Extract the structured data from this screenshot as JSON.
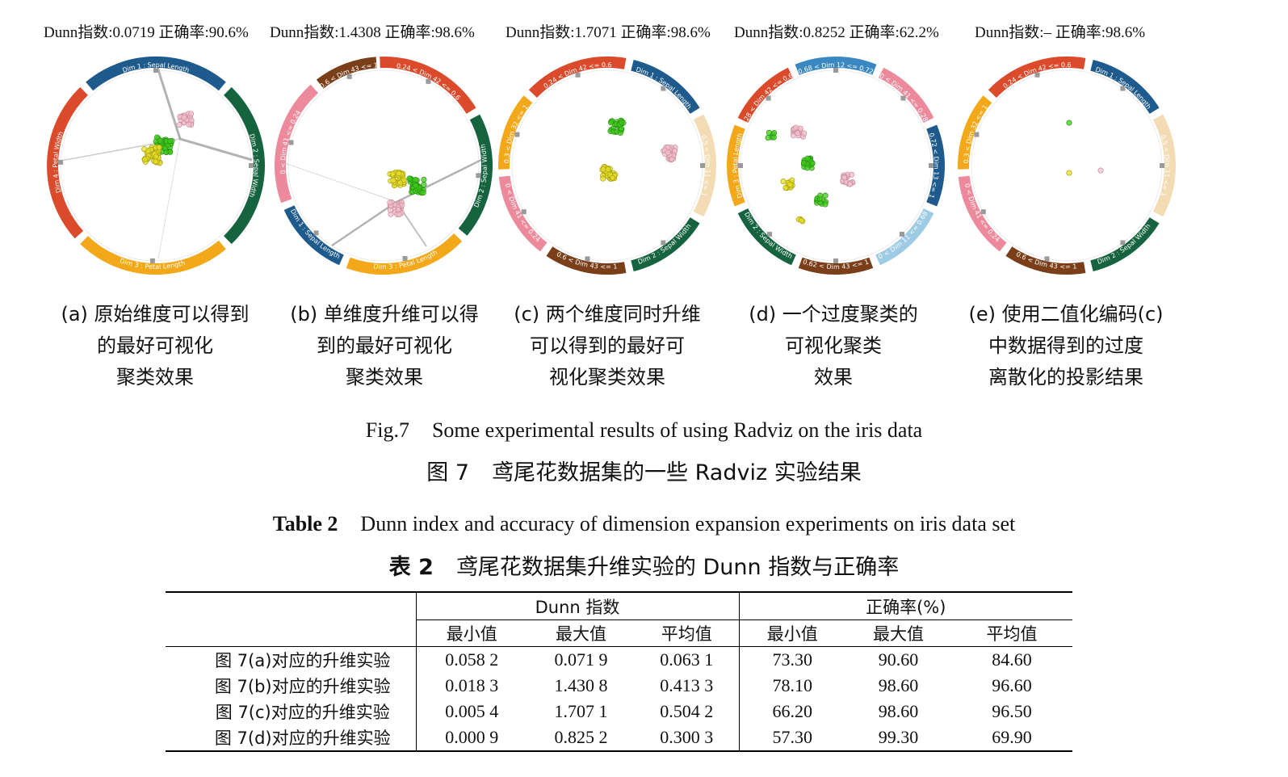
{
  "panels": [
    {
      "id": "a",
      "metric": "Dunn指数:0.0719  正确率:90.6%",
      "caption": [
        "(a)  原始维度可以得到",
        "的最好可视化",
        "聚类效果"
      ],
      "segments": [
        {
          "label": "Dim 1 : Sepal Length",
          "color": "#1e5b8c",
          "start": -40,
          "end": 40
        },
        {
          "label": "Dim 2 : Sepal Width",
          "color": "#15633f",
          "start": 44,
          "end": 136
        },
        {
          "label": "Dim 3 : Petal Length",
          "color": "#f2a818",
          "start": 140,
          "end": 224
        },
        {
          "label": "Dim 4 : Petal Width",
          "color": "#db4a2b",
          "start": 228,
          "end": 316
        }
      ]
    },
    {
      "id": "b",
      "metric": "Dunn指数:1.4308  正确率:98.6%",
      "caption": [
        "(b)  单维度升维可以得",
        "到的最好可视化",
        "聚类效果"
      ],
      "segments": [
        {
          "label": "0.24 < Dim 42 <= 0.6",
          "color": "#db4a2b",
          "start": -2,
          "end": 58
        },
        {
          "label": "Dim 2 : Sepal Width",
          "color": "#15633f",
          "start": 62,
          "end": 130
        },
        {
          "label": "Dim 3 : Petal Length",
          "color": "#f2a818",
          "start": 134,
          "end": 200
        },
        {
          "label": "Dim 1 : Sepal Length",
          "color": "#1e5b8c",
          "start": 204,
          "end": 246
        },
        {
          "label": "0 < Dim 41 <= 0.24",
          "color": "#ec8a9b",
          "start": 250,
          "end": 318
        },
        {
          "label": "0.6 < Dim 43 <= 1",
          "color": "#7a3e18",
          "start": 322,
          "end": 356
        }
      ]
    },
    {
      "id": "c",
      "metric": "Dunn指数:1.7071  正确率:98.6%",
      "caption": [
        "(c)  两个维度同时升维",
        "可以得到的最好可",
        "视化聚类效果"
      ],
      "segments": [
        {
          "label": "Dim 1 : Sepal Length",
          "color": "#1e5b8c",
          "start": 14,
          "end": 58
        },
        {
          "label": "0.5 < Dim 11 <= 1",
          "color": "#f3dcb4",
          "start": 62,
          "end": 118
        },
        {
          "label": "Dim 2 : Sepal Width",
          "color": "#15633f",
          "start": 122,
          "end": 166
        },
        {
          "label": "0.6 < Dim 43 <= 1",
          "color": "#7a3e18",
          "start": 170,
          "end": 214
        },
        {
          "label": "0 < Dim 41 <= 0.24",
          "color": "#ec8a9b",
          "start": 218,
          "end": 264
        },
        {
          "label": "0.3 < Dim 32 <= 1",
          "color": "#f2a818",
          "start": 268,
          "end": 310
        },
        {
          "label": "0.24 < Dim 42 <= 0.6",
          "color": "#db4a2b",
          "start": 314,
          "end": 10
        }
      ]
    },
    {
      "id": "d",
      "metric": "Dunn指数:0.8252  正确率:62.2%",
      "caption": [
        "(d)  一个过度聚类的",
        "可视化聚类",
        "效果"
      ],
      "segments": [
        {
          "label": "0.68 < Dim 12 <= 0.72",
          "color": "#3a88c2",
          "start": -22,
          "end": 22
        },
        {
          "label": "0 < Dim 41 <= 0.28",
          "color": "#ec8a9b",
          "start": 26,
          "end": 64
        },
        {
          "label": "0.72 < Dim 13 <= 1",
          "color": "#1e5b8c",
          "start": 68,
          "end": 112
        },
        {
          "label": "0 < Dim 11 <= 0.68",
          "color": "#9ccbe3",
          "start": 116,
          "end": 156
        },
        {
          "label": "0.62 < Dim 43 <= 1",
          "color": "#7a3e18",
          "start": 160,
          "end": 200
        },
        {
          "label": "Dim 2 : Sepal Width",
          "color": "#15633f",
          "start": 204,
          "end": 244
        },
        {
          "label": "Dim 3 : Petal Length",
          "color": "#f2a818",
          "start": 248,
          "end": 292
        },
        {
          "label": "0.28 < Dim 42 <= 0.62",
          "color": "#db4a2b",
          "start": 296,
          "end": 334
        }
      ]
    },
    {
      "id": "e",
      "metric": "Dunn指数:–  正确率:98.6%",
      "caption": [
        "(e)  使用二值化编码(c)",
        "中数据得到的过度",
        "离散化的投影结果"
      ],
      "segments": [
        {
          "label": "Dim 1 : Sepal Length",
          "color": "#1e5b8c",
          "start": 14,
          "end": 58
        },
        {
          "label": "0.5 < Dim 11 <= 1",
          "color": "#f3dcb4",
          "start": 62,
          "end": 118
        },
        {
          "label": "Dim 2 : Sepal Width",
          "color": "#15633f",
          "start": 122,
          "end": 166
        },
        {
          "label": "0.6 < Dim 43 <= 1",
          "color": "#7a3e18",
          "start": 170,
          "end": 214
        },
        {
          "label": "0 < Dim 41 <= 0.24",
          "color": "#ec8a9b",
          "start": 218,
          "end": 264
        },
        {
          "label": "0.3 < Dim 32 <= 1",
          "color": "#f2a818",
          "start": 268,
          "end": 310
        },
        {
          "label": "0.24 < Dim 42 <= 0.6",
          "color": "#db4a2b",
          "start": 314,
          "end": 10
        }
      ]
    }
  ],
  "figure_caption_en_label": "Fig.7",
  "figure_caption_en": "Some experimental results of using Radviz on the iris data",
  "figure_caption_zh_label": "图 7",
  "figure_caption_zh": "鸢尾花数据集的一些 Radviz 实验结果",
  "table_caption_en_label": "Table 2",
  "table_caption_en": "Dunn index and accuracy of dimension expansion experiments on iris data set",
  "table_caption_zh_label": "表 2",
  "table_caption_zh": "鸢尾花数据集升维实验的 Dunn 指数与正确率",
  "table": {
    "group_headers": [
      "Dunn 指数",
      "正确率(%)"
    ],
    "sub_headers": [
      "最小值",
      "最大值",
      "平均值",
      "最小值",
      "最大值",
      "平均值"
    ],
    "rows": [
      {
        "label": "图 7(a)对应的升维实验",
        "values": [
          "0.058 2",
          "0.071 9",
          "0.063 1",
          "73.30",
          "90.60",
          "84.60"
        ]
      },
      {
        "label": "图 7(b)对应的升维实验",
        "values": [
          "0.018 3",
          "1.430 8",
          "0.413 3",
          "78.10",
          "98.60",
          "96.60"
        ]
      },
      {
        "label": "图 7(c)对应的升维实验",
        "values": [
          "0.005 4",
          "1.707 1",
          "0.504 2",
          "66.20",
          "98.60",
          "96.50"
        ]
      },
      {
        "label": "图 7(d)对应的升维实验",
        "values": [
          "0.000 9",
          "0.825 2",
          "0.300 3",
          "57.30",
          "99.30",
          "69.90"
        ]
      }
    ]
  }
}
